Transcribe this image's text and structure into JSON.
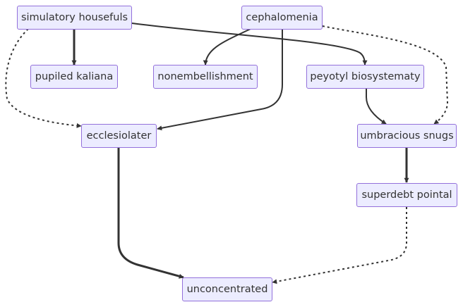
{
  "colors": {
    "node_fill": "#ececff",
    "node_border": "#9370db",
    "edge": "#333333",
    "text": "#333333"
  },
  "nodes": {
    "simulatory_housefuls": "simulatory housefuls",
    "cephalomenia": "cephalomenia",
    "pupiled_kaliana": "pupiled kaliana",
    "nonembellishment": "nonembellishment",
    "peyotyl_biosystematy": "peyotyl biosystematy",
    "ecclesiolater": "ecclesiolater",
    "umbracious_snugs": "umbracious snugs",
    "superdebt_pointal": "superdebt pointal",
    "unconcentrated": "unconcentrated"
  },
  "edges": [
    {
      "from": "simulatory_housefuls",
      "to": "pupiled_kaliana",
      "style": "thick"
    },
    {
      "from": "simulatory_housefuls",
      "to": "peyotyl_biosystematy",
      "style": "solid"
    },
    {
      "from": "simulatory_housefuls",
      "to": "ecclesiolater",
      "style": "dotted"
    },
    {
      "from": "cephalomenia",
      "to": "nonembellishment",
      "style": "solid"
    },
    {
      "from": "cephalomenia",
      "to": "ecclesiolater",
      "style": "solid"
    },
    {
      "from": "cephalomenia",
      "to": "umbracious_snugs",
      "style": "dotted"
    },
    {
      "from": "peyotyl_biosystematy",
      "to": "umbracious_snugs",
      "style": "solid"
    },
    {
      "from": "umbracious_snugs",
      "to": "superdebt_pointal",
      "style": "thick"
    },
    {
      "from": "ecclesiolater",
      "to": "unconcentrated",
      "style": "thick"
    },
    {
      "from": "superdebt_pointal",
      "to": "unconcentrated",
      "style": "dotted"
    }
  ]
}
